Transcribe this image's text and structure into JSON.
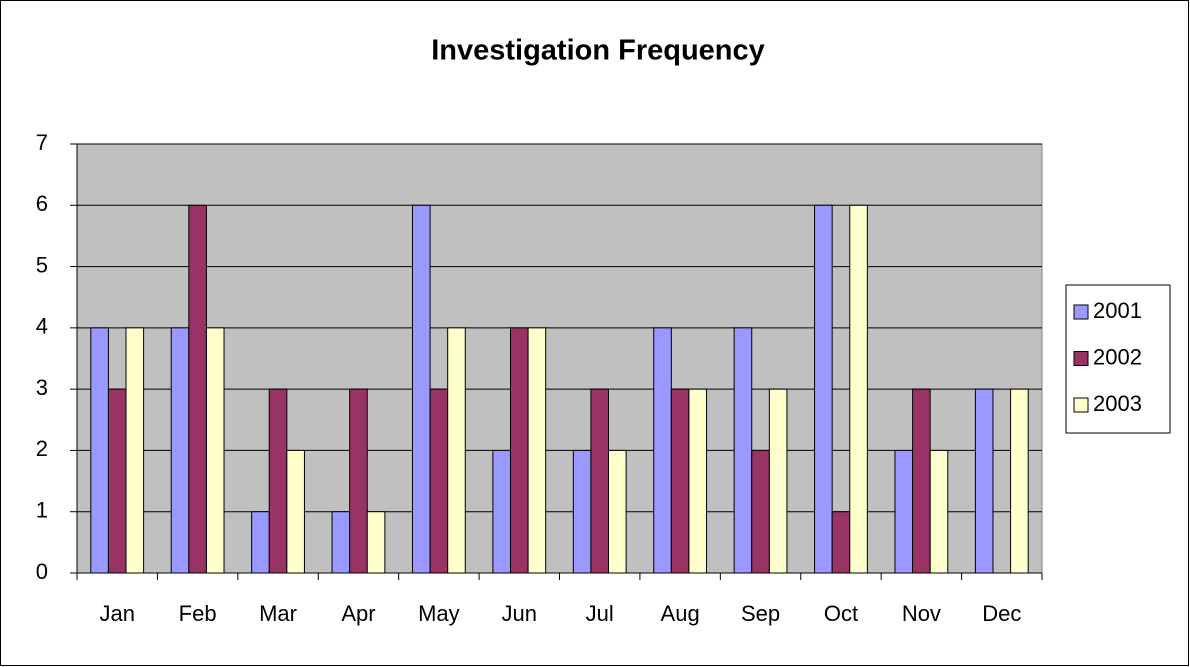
{
  "chart_data": {
    "type": "bar",
    "title": "Investigation Frequency",
    "categories": [
      "Jan",
      "Feb",
      "Mar",
      "Apr",
      "May",
      "Jun",
      "Jul",
      "Aug",
      "Sep",
      "Oct",
      "Nov",
      "Dec"
    ],
    "series": [
      {
        "name": "2001",
        "color": "#9999ff",
        "values": [
          4,
          4,
          1,
          1,
          6,
          2,
          2,
          4,
          4,
          6,
          2,
          3
        ]
      },
      {
        "name": "2002",
        "color": "#993366",
        "values": [
          3,
          6,
          3,
          3,
          3,
          4,
          3,
          3,
          2,
          1,
          3,
          0
        ]
      },
      {
        "name": "2003",
        "color": "#ffffcc",
        "values": [
          4,
          4,
          2,
          1,
          4,
          4,
          2,
          3,
          3,
          6,
          2,
          3
        ]
      }
    ],
    "ylim": [
      0,
      7
    ],
    "yticks": [
      0,
      1,
      2,
      3,
      4,
      5,
      6,
      7
    ],
    "grid": true,
    "legend": "right"
  }
}
